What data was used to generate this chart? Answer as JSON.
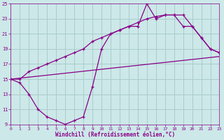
{
  "background_color": "#cce8e8",
  "grid_color": "#aacccc",
  "line_color": "#880088",
  "xlabel": "Windchill (Refroidissement éolien,°C)",
  "ylim": [
    9,
    25
  ],
  "xlim": [
    0,
    23
  ],
  "yticks": [
    9,
    11,
    13,
    15,
    17,
    19,
    21,
    23,
    25
  ],
  "xticks": [
    0,
    1,
    2,
    3,
    4,
    5,
    6,
    7,
    8,
    9,
    10,
    11,
    12,
    13,
    14,
    15,
    16,
    17,
    18,
    19,
    20,
    21,
    22,
    23
  ],
  "line1_x": [
    0,
    1,
    2,
    3,
    4,
    5,
    6,
    7,
    8,
    9,
    10,
    11,
    12,
    13,
    14,
    15,
    16,
    17,
    18,
    19,
    20,
    21,
    22,
    23
  ],
  "line1_y": [
    15,
    15,
    16,
    16.5,
    17,
    17.5,
    18,
    18.5,
    19,
    20,
    20.5,
    21,
    21.5,
    22,
    22.5,
    23,
    23.3,
    23.5,
    23.5,
    23.5,
    22,
    20.5,
    19,
    18.5
  ],
  "line2_x": [
    0,
    1,
    2,
    3,
    4,
    5,
    6,
    7,
    8,
    9,
    10,
    11,
    12,
    13,
    14,
    15,
    16,
    17,
    18,
    19,
    20,
    21,
    22,
    23
  ],
  "line2_y": [
    15,
    14.5,
    13,
    11,
    10,
    9.5,
    9,
    9.5,
    10,
    14,
    19,
    21,
    21.5,
    22,
    22,
    25,
    23,
    23.5,
    23.5,
    22,
    22,
    20.5,
    19,
    18.5
  ],
  "line3_x": [
    0,
    23
  ],
  "line3_y": [
    15,
    18
  ],
  "marker_size": 3.5
}
